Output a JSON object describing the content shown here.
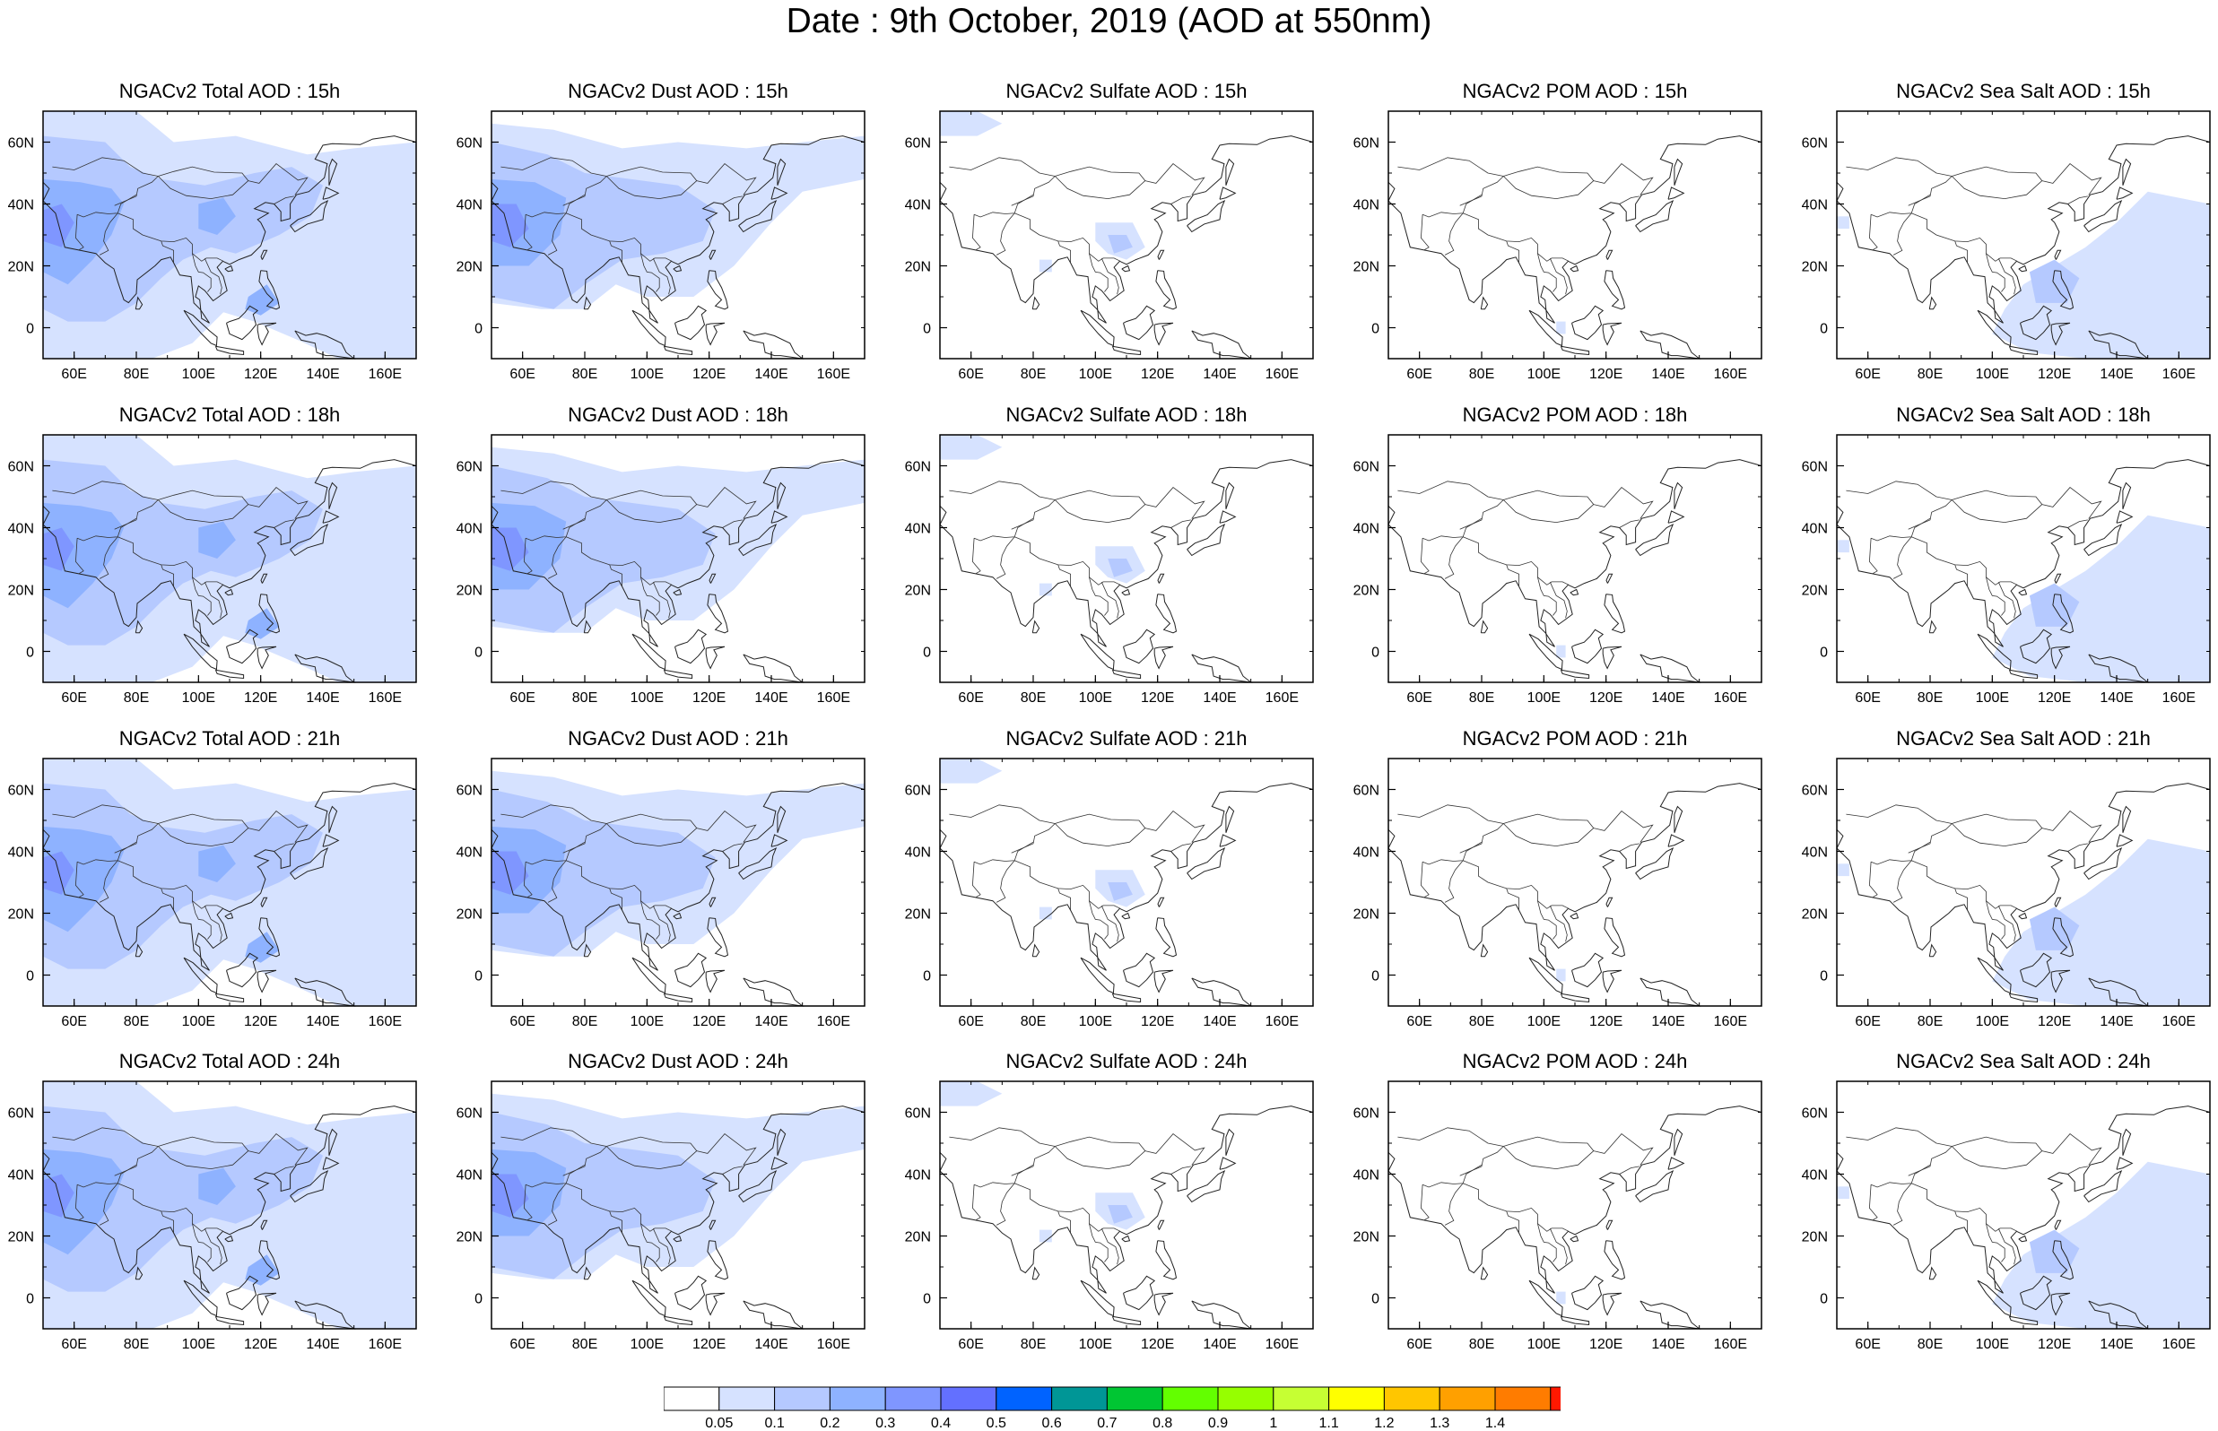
{
  "title": "Date : 9th October, 2019 (AOD at 550nm)",
  "map": {
    "lon_range": [
      50,
      170
    ],
    "lat_range": [
      -10,
      70
    ],
    "lon_ticks": [
      "60E",
      "80E",
      "100E",
      "120E",
      "140E",
      "160E"
    ],
    "lat_ticks": [
      "60N",
      "40N",
      "20N",
      "0"
    ]
  },
  "panels": [
    {
      "title": "NGACv2 Total AOD : 15h",
      "species": "total",
      "hour": "15h"
    },
    {
      "title": "NGACv2 Dust AOD : 15h",
      "species": "dust",
      "hour": "15h"
    },
    {
      "title": "NGACv2 Sulfate AOD : 15h",
      "species": "sulfate",
      "hour": "15h"
    },
    {
      "title": "NGACv2 POM AOD : 15h",
      "species": "pom",
      "hour": "15h"
    },
    {
      "title": "NGACv2 Sea Salt AOD : 15h",
      "species": "seasalt",
      "hour": "15h"
    },
    {
      "title": "NGACv2 Total AOD : 18h",
      "species": "total",
      "hour": "18h"
    },
    {
      "title": "NGACv2 Dust AOD : 18h",
      "species": "dust",
      "hour": "18h"
    },
    {
      "title": "NGACv2 Sulfate AOD : 18h",
      "species": "sulfate",
      "hour": "18h"
    },
    {
      "title": "NGACv2 POM AOD : 18h",
      "species": "pom",
      "hour": "18h"
    },
    {
      "title": "NGACv2 Sea Salt AOD : 18h",
      "species": "seasalt",
      "hour": "18h"
    },
    {
      "title": "NGACv2 Total AOD : 21h",
      "species": "total",
      "hour": "21h"
    },
    {
      "title": "NGACv2 Dust AOD : 21h",
      "species": "dust",
      "hour": "21h"
    },
    {
      "title": "NGACv2 Sulfate AOD : 21h",
      "species": "sulfate",
      "hour": "21h"
    },
    {
      "title": "NGACv2 POM AOD : 21h",
      "species": "pom",
      "hour": "21h"
    },
    {
      "title": "NGACv2 Sea Salt AOD : 21h",
      "species": "seasalt",
      "hour": "21h"
    },
    {
      "title": "NGACv2 Total AOD : 24h",
      "species": "total",
      "hour": "24h"
    },
    {
      "title": "NGACv2 Dust AOD : 24h",
      "species": "dust",
      "hour": "24h"
    },
    {
      "title": "NGACv2 Sulfate AOD : 24h",
      "species": "sulfate",
      "hour": "24h"
    },
    {
      "title": "NGACv2 POM AOD : 24h",
      "species": "pom",
      "hour": "24h"
    },
    {
      "title": "NGACv2 Sea Salt  AOD : 24h",
      "species": "seasalt",
      "hour": "24h"
    }
  ],
  "colorbar": {
    "levels": [
      "0.05",
      "0.1",
      "0.2",
      "0.3",
      "0.4",
      "0.5",
      "0.6",
      "0.7",
      "0.8",
      "0.9",
      "1",
      "1.1",
      "1.2",
      "1.3",
      "1.4"
    ],
    "colors": [
      "#ffffff",
      "#d6e2ff",
      "#b5c9ff",
      "#8eb2ff",
      "#7f96ff",
      "#6370ff",
      "#0063ff",
      "#009696",
      "#00c633",
      "#63ff00",
      "#96ff00",
      "#c6ff33",
      "#ffff00",
      "#ffc600",
      "#ffa000",
      "#ff7c00",
      "#ff1900"
    ]
  }
}
